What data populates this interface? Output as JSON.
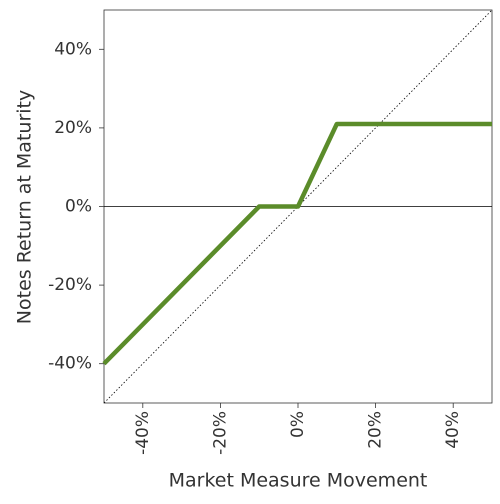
{
  "chart_data": {
    "type": "line",
    "x_label": "Market Measure Movement",
    "y_label": "Notes Return at Maturity",
    "series": [
      {
        "color": "#5b8c2a",
        "x": [
          -50,
          -10,
          0,
          10,
          50
        ],
        "values": [
          -40,
          0,
          0,
          21,
          21
        ]
      }
    ],
    "diagonal": {
      "x": [
        -50,
        50
      ],
      "values": [
        -50,
        50
      ],
      "color": "#000000"
    },
    "xlim": [
      -50,
      50
    ],
    "ylim": [
      -50,
      50
    ],
    "xticks": [
      {
        "value": -40,
        "label": "-40%"
      },
      {
        "value": -20,
        "label": "-20%"
      },
      {
        "value": 0,
        "label": "0%"
      },
      {
        "value": 20,
        "label": "20%"
      },
      {
        "value": 40,
        "label": "40%"
      }
    ],
    "yticks": [
      {
        "value": -40,
        "label": "-40%"
      },
      {
        "value": -20,
        "label": "-20%"
      },
      {
        "value": 0,
        "label": "0%"
      },
      {
        "value": 20,
        "label": "20%"
      },
      {
        "value": 40,
        "label": "40%"
      }
    ]
  }
}
